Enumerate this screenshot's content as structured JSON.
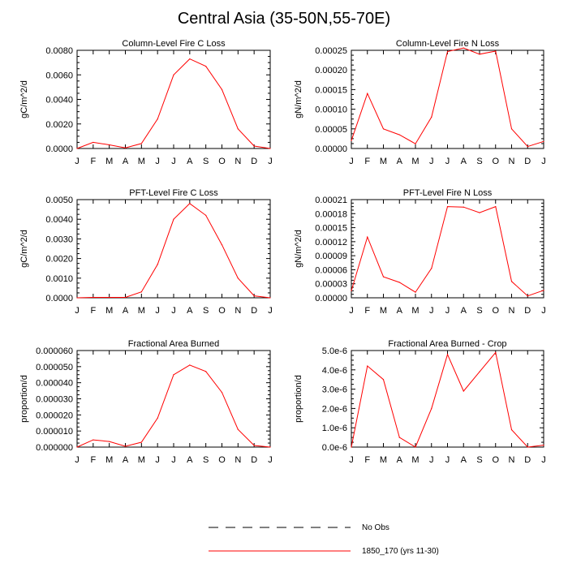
{
  "figure": {
    "title": "Central Asia (35-50N,55-70E)"
  },
  "legend": {
    "entries": [
      {
        "label": "No Obs",
        "style": "dashed",
        "color": "#000000"
      },
      {
        "label": "1850_170 (yrs 11-30)",
        "style": "solid",
        "color": "#ff0000"
      }
    ]
  },
  "chart_data": [
    {
      "type": "line",
      "title": "Column-Level Fire C Loss",
      "ylabel": "gC/m^2/d",
      "x": [
        "J",
        "F",
        "M",
        "A",
        "M",
        "J",
        "J",
        "A",
        "S",
        "O",
        "N",
        "D",
        "J"
      ],
      "ylim": [
        0,
        0.008
      ],
      "yticks": [
        "0.0000",
        "0.0020",
        "0.0040",
        "0.0060",
        "0.0080"
      ],
      "series": [
        {
          "color": "#ff0000",
          "values": [
            0.0,
            0.0005,
            0.0003,
            5e-05,
            0.0004,
            0.0024,
            0.006,
            0.0073,
            0.0067,
            0.0048,
            0.0016,
            0.0002,
            0.0
          ]
        }
      ]
    },
    {
      "type": "line",
      "title": "Column-Level Fire N Loss",
      "ylabel": "gN/m^2/d",
      "x": [
        "J",
        "F",
        "M",
        "A",
        "M",
        "J",
        "J",
        "A",
        "S",
        "O",
        "N",
        "D",
        "J"
      ],
      "ylim": [
        0,
        0.00025
      ],
      "yticks": [
        "0.00000",
        "0.00005",
        "0.00010",
        "0.00015",
        "0.00020",
        "0.00025"
      ],
      "series": [
        {
          "color": "#ff0000",
          "values": [
            2e-05,
            0.00014,
            5e-05,
            3.5e-05,
            1.2e-05,
            8e-05,
            0.000247,
            0.000256,
            0.00024,
            0.000248,
            5e-05,
            5e-06,
            1.8e-05
          ]
        }
      ]
    },
    {
      "type": "line",
      "title": "PFT-Level Fire C Loss",
      "ylabel": "gC/m^2/d",
      "x": [
        "J",
        "F",
        "M",
        "A",
        "M",
        "J",
        "J",
        "A",
        "S",
        "O",
        "N",
        "D",
        "J"
      ],
      "ylim": [
        0,
        0.005
      ],
      "yticks": [
        "0.0000",
        "0.0010",
        "0.0020",
        "0.0030",
        "0.0040",
        "0.0050"
      ],
      "series": [
        {
          "color": "#ff0000",
          "values": [
            0.0,
            2e-05,
            2e-05,
            2e-05,
            0.0003,
            0.0017,
            0.004,
            0.0048,
            0.0042,
            0.0027,
            0.001,
            0.0001,
            0.0
          ]
        }
      ]
    },
    {
      "type": "line",
      "title": "PFT-Level Fire N Loss",
      "ylabel": "gN/m^2/d",
      "x": [
        "J",
        "F",
        "M",
        "A",
        "M",
        "J",
        "J",
        "A",
        "S",
        "O",
        "N",
        "D",
        "J"
      ],
      "ylim": [
        0,
        0.00021
      ],
      "yticks": [
        "0.00000",
        "0.00003",
        "0.00006",
        "0.00009",
        "0.00012",
        "0.00015",
        "0.00018",
        "0.00021"
      ],
      "series": [
        {
          "color": "#ff0000",
          "values": [
            1.5e-05,
            0.00013,
            4.5e-05,
            3.3e-05,
            1.2e-05,
            6.3e-05,
            0.000195,
            0.000194,
            0.000182,
            0.000195,
            3.5e-05,
            4e-06,
            1.6e-05
          ]
        }
      ]
    },
    {
      "type": "line",
      "title": "Fractional Area Burned",
      "ylabel": "proportion/d",
      "x": [
        "J",
        "F",
        "M",
        "A",
        "M",
        "J",
        "J",
        "A",
        "S",
        "O",
        "N",
        "D",
        "J"
      ],
      "ylim": [
        0,
        6e-05
      ],
      "yticks": [
        "0.000000",
        "0.000010",
        "0.000020",
        "0.000030",
        "0.000040",
        "0.000050",
        "0.000060"
      ],
      "series": [
        {
          "color": "#ff0000",
          "values": [
            0.0,
            4.5e-06,
            3.5e-06,
            5e-07,
            3e-06,
            1.8e-05,
            4.5e-05,
            5.1e-05,
            4.7e-05,
            3.4e-05,
            1.1e-05,
            1e-06,
            0.0
          ]
        }
      ]
    },
    {
      "type": "line",
      "title": "Fractional Area Burned - Crop",
      "ylabel": "proportion/d",
      "x": [
        "J",
        "F",
        "M",
        "A",
        "M",
        "J",
        "J",
        "A",
        "S",
        "O",
        "N",
        "D",
        "J"
      ],
      "ylim": [
        0,
        5e-06
      ],
      "yticks": [
        "0.0e-6",
        "1.0e-6",
        "2.0e-6",
        "3.0e-6",
        "4.0e-6",
        "5.0e-6"
      ],
      "series": [
        {
          "color": "#ff0000",
          "values": [
            0.0,
            4.2e-06,
            3.5e-06,
            5e-07,
            0.0,
            2e-06,
            4.8e-06,
            2.9e-06,
            3.9e-06,
            4.9e-06,
            9e-07,
            0.0,
            1e-07
          ]
        }
      ]
    }
  ]
}
